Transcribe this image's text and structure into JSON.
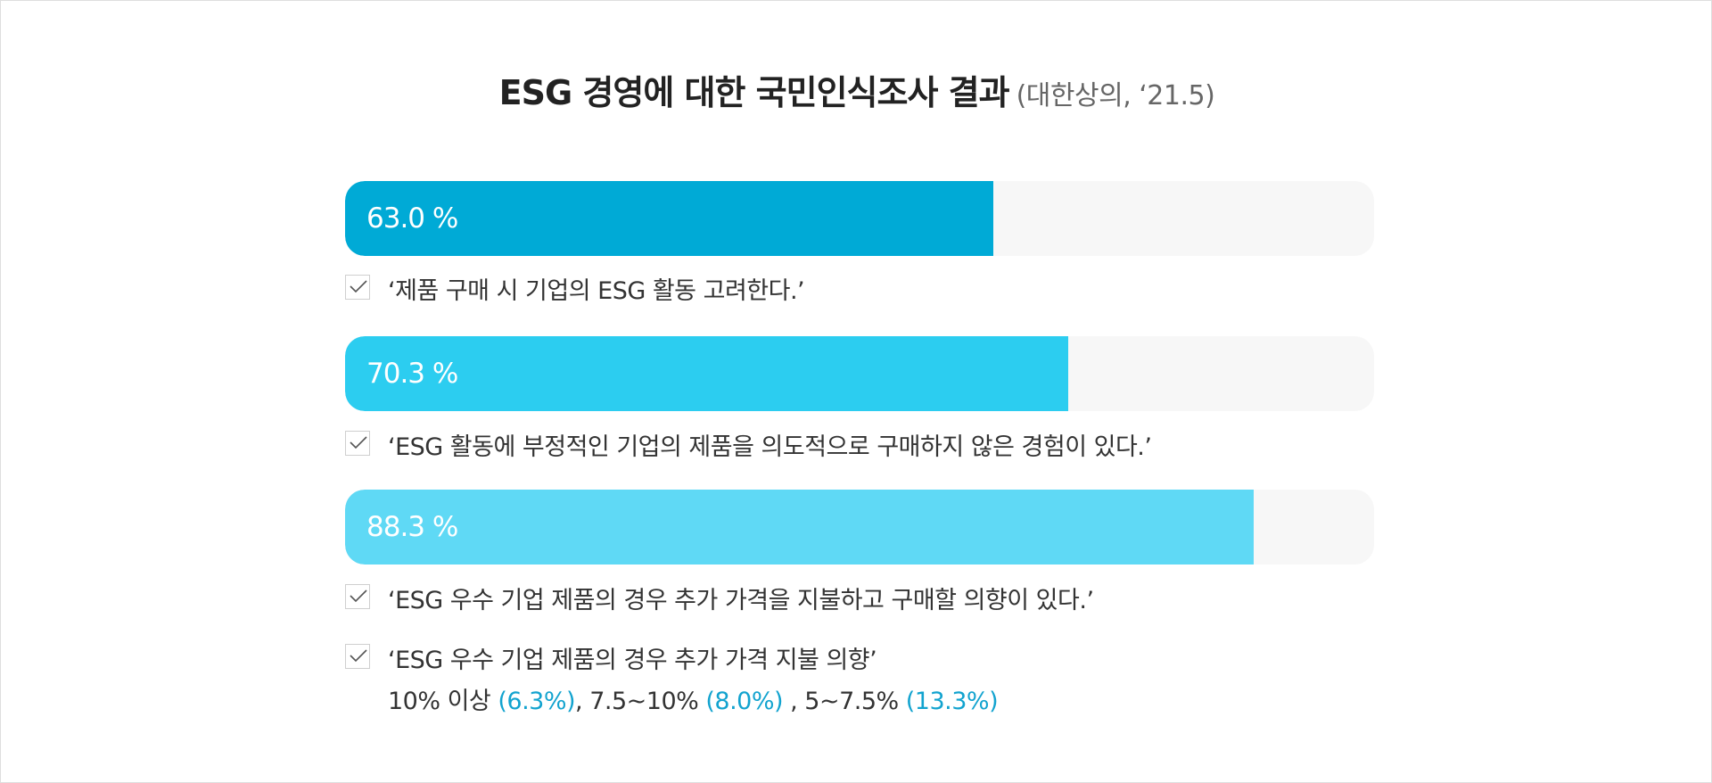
{
  "title": "ESG 경영에 대한 국민인식조사 결과",
  "subtitle": "(대한상의, ‘21.5)",
  "colors": {
    "bar1": "#00aad6",
    "bar2": "#2ccdf0",
    "bar3": "#5fd9f5",
    "track": "#f7f7f7",
    "highlight": "#12a3cf"
  },
  "chart_data": {
    "type": "bar",
    "orientation": "horizontal",
    "xlim": [
      0,
      100
    ],
    "bars": [
      {
        "value": 63.0,
        "label": "63.0 %",
        "statement": "‘제품 구매 시 기업의 ESG 활동 고려한다.’"
      },
      {
        "value": 70.3,
        "label": "70.3 %",
        "statement": "‘ESG 활동에 부정적인 기업의 제품을 의도적으로 구매하지 않은 경험이 있다.’"
      },
      {
        "value": 88.3,
        "label": "88.3 %",
        "statement": "‘ESG 우수 기업 제품의 경우 추가 가격을 지불하고 구매할 의향이 있다.’"
      }
    ]
  },
  "note": {
    "statement": "‘ESG 우수 기업 제품의 경우 추가 가격 지불 의향’",
    "breakdown": [
      {
        "range": "10% 이상 ",
        "value": "(6.3%)",
        "sep": ", "
      },
      {
        "range": "7.5~10% ",
        "value": "(8.0%)",
        "sep": " , "
      },
      {
        "range": "5~7.5% ",
        "value": "(13.3%)",
        "sep": ""
      }
    ]
  }
}
